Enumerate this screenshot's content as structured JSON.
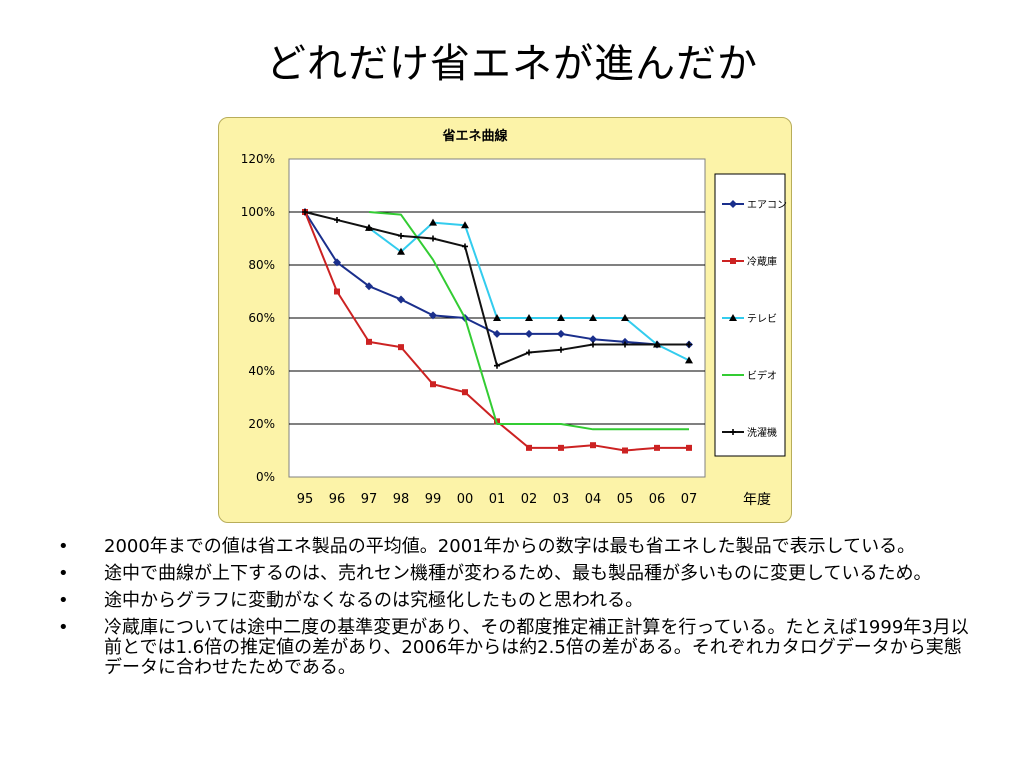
{
  "slide": {
    "title": "どれだけ省エネが進んだか",
    "bullets": [
      "2000年までの値は省エネ製品の平均値。2001年からの数字は最も省エネした製品で表示している。",
      "途中で曲線が上下するのは、売れセン機種が変わるため、最も製品種が多いものに変更しているため。",
      "途中からグラフに変動がなくなるのは究極化したものと思われる。",
      "冷蔵庫については途中二度の基準変更があり、その都度推定補正計算を行っている。たとえば1999年3月以前とでは1.6倍の推定値の差があり、2006年からは約2.5倍の差がある。それぞれカタログデータから実態データに合わせたためである。"
    ],
    "bullet_symbol": "•"
  },
  "chart_data": {
    "type": "line",
    "title": "省エネ曲線",
    "xlabel": "年度",
    "ylabel": "",
    "categories": [
      "95",
      "96",
      "97",
      "98",
      "99",
      "00",
      "01",
      "02",
      "03",
      "04",
      "05",
      "06",
      "07"
    ],
    "y_ticks": [
      "0%",
      "20%",
      "40%",
      "60%",
      "80%",
      "100%",
      "120%"
    ],
    "ylim": [
      0,
      120
    ],
    "grid": true,
    "legend_position": "right",
    "series": [
      {
        "name": "エアコン",
        "color": "#1a2f8c",
        "marker": "diamond",
        "values": [
          100,
          81,
          72,
          67,
          61,
          60,
          54,
          54,
          54,
          52,
          51,
          50,
          50
        ]
      },
      {
        "name": "冷蔵庫",
        "color": "#cc2222",
        "marker": "square",
        "values": [
          100,
          70,
          51,
          49,
          35,
          32,
          21,
          11,
          11,
          12,
          10,
          11,
          11
        ]
      },
      {
        "name": "テレビ",
        "color": "#33ccee",
        "marker": "triangle",
        "values": [
          null,
          null,
          94,
          85,
          96,
          95,
          60,
          60,
          60,
          60,
          60,
          50,
          44
        ]
      },
      {
        "name": "ビデオ",
        "color": "#33cc33",
        "marker": "none",
        "values": [
          null,
          null,
          100,
          99,
          82,
          60,
          20,
          20,
          20,
          18,
          18,
          18,
          18
        ]
      },
      {
        "name": "洗濯機",
        "color": "#111111",
        "marker": "cross",
        "values": [
          100,
          97,
          94,
          91,
          90,
          87,
          42,
          47,
          48,
          50,
          50,
          50,
          50
        ]
      }
    ]
  }
}
